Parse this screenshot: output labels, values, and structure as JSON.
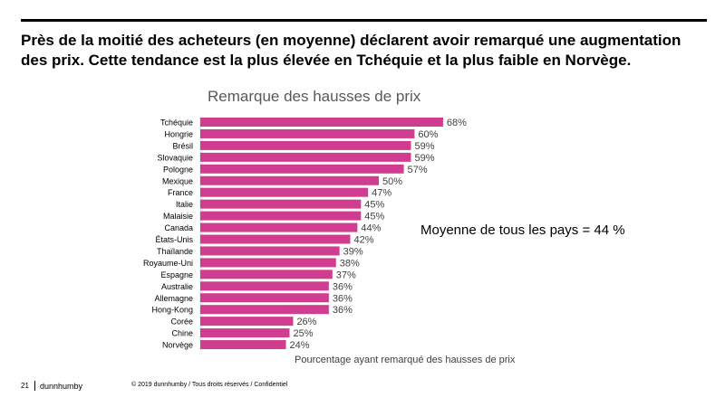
{
  "headline": "Près de la moitié des acheteurs (en moyenne) déclarent avoir remarqué une augmentation des prix. Cette tendance est la plus élevée en Tchéquie et la plus faible en Norvège.",
  "annotation": "Moyenne de tous les pays = 44 %",
  "footer": {
    "page": "21",
    "brand": "dunnhumby",
    "copyright": "© 2019 dunnhumby / Tous droits réservés / Confidentiel"
  },
  "colors": {
    "bar": "#d03c8f"
  },
  "chart_data": {
    "type": "bar",
    "orientation": "horizontal",
    "title": "Remarque des hausses de prix",
    "xlabel": "Pourcentage ayant remarqué des hausses de prix",
    "ylabel": "",
    "xlim": [
      0,
      100
    ],
    "grid": false,
    "categories": [
      "Tchéquie",
      "Hongrie",
      "Brésil",
      "Slovaquie",
      "Pologne",
      "Mexique",
      "France",
      "Italie",
      "Malaisie",
      "Canada",
      "États-Unis",
      "Thaïlande",
      "Royaume-Uni",
      "Espagne",
      "Australie",
      "Allemagne",
      "Hong-Kong",
      "Corée",
      "Chine",
      "Norvège"
    ],
    "values": [
      68,
      60,
      59,
      59,
      57,
      50,
      47,
      45,
      45,
      44,
      42,
      39,
      38,
      37,
      36,
      36,
      36,
      26,
      25,
      24
    ],
    "value_labels": [
      "68%",
      "60%",
      "59%",
      "59%",
      "57%",
      "50%",
      "47%",
      "45%",
      "45%",
      "44%",
      "42%",
      "39%",
      "38%",
      "37%",
      "36%",
      "36%",
      "36%",
      "26%",
      "25%",
      "24%"
    ]
  }
}
